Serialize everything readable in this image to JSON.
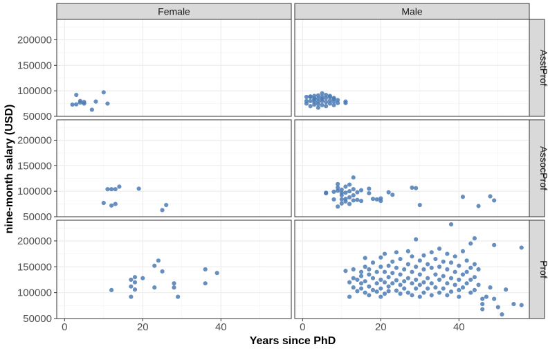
{
  "chart_data": {
    "type": "scatter",
    "facet_cols": [
      "Female",
      "Male"
    ],
    "facet_rows": [
      "AsstProf",
      "AssocProf",
      "Prof"
    ],
    "xlabel": "Years since PhD",
    "ylabel": "nine-month salary (USD)",
    "xlim": [
      -2,
      58
    ],
    "ylim": [
      50000,
      240000
    ],
    "x_ticks": [
      0,
      20,
      40
    ],
    "y_ticks": [
      50000,
      100000,
      150000,
      200000
    ],
    "point_color": "#4b7bb5",
    "grid": true,
    "panels": [
      {
        "row": "AsstProf",
        "col": "Female",
        "points": [
          [
            2,
            73000
          ],
          [
            3,
            73500
          ],
          [
            3,
            92000
          ],
          [
            4,
            80000
          ],
          [
            4,
            77000
          ],
          [
            5,
            75000
          ],
          [
            5,
            78000
          ],
          [
            7,
            63000
          ],
          [
            8,
            79000
          ],
          [
            10,
            97000
          ],
          [
            11,
            75000
          ]
        ]
      },
      {
        "row": "AsstProf",
        "col": "Male",
        "points": [
          [
            1,
            88000
          ],
          [
            1,
            80000
          ],
          [
            1,
            75000
          ],
          [
            2,
            88000
          ],
          [
            2,
            80000
          ],
          [
            2,
            70000
          ],
          [
            2,
            89000
          ],
          [
            3,
            85000
          ],
          [
            3,
            78000
          ],
          [
            3,
            73000
          ],
          [
            3,
            90000
          ],
          [
            3,
            83000
          ],
          [
            4,
            91000
          ],
          [
            4,
            85000
          ],
          [
            4,
            74000
          ],
          [
            4,
            67000
          ],
          [
            4,
            79000
          ],
          [
            5,
            95000
          ],
          [
            5,
            88000
          ],
          [
            5,
            80000
          ],
          [
            5,
            72000
          ],
          [
            5,
            84000
          ],
          [
            6,
            92000
          ],
          [
            6,
            78000
          ],
          [
            6,
            70000
          ],
          [
            6,
            86000
          ],
          [
            7,
            88000
          ],
          [
            7,
            81000
          ],
          [
            7,
            75000
          ],
          [
            7,
            90000
          ],
          [
            8,
            86000
          ],
          [
            8,
            79000
          ],
          [
            8,
            72000
          ],
          [
            8,
            84000
          ],
          [
            9,
            82000
          ],
          [
            9,
            76000
          ],
          [
            11,
            79000
          ],
          [
            11,
            76000
          ]
        ]
      },
      {
        "row": "AssocProf",
        "col": "Female",
        "points": [
          [
            10,
            77000
          ],
          [
            11,
            104000
          ],
          [
            12,
            104000
          ],
          [
            12,
            72000
          ],
          [
            13,
            104000
          ],
          [
            13,
            75000
          ],
          [
            14,
            109000
          ],
          [
            19,
            105000
          ],
          [
            25,
            63000
          ],
          [
            26,
            73000
          ]
        ]
      },
      {
        "row": "AssocProf",
        "col": "Male",
        "points": [
          [
            6,
            96000
          ],
          [
            6,
            97000
          ],
          [
            8,
            99000
          ],
          [
            8,
            84000
          ],
          [
            9,
            101000
          ],
          [
            9,
            107000
          ],
          [
            9,
            114000
          ],
          [
            9,
            70000
          ],
          [
            10,
            103000
          ],
          [
            10,
            97000
          ],
          [
            10,
            92000
          ],
          [
            10,
            84000
          ],
          [
            10,
            76000
          ],
          [
            11,
            109000
          ],
          [
            11,
            97000
          ],
          [
            11,
            85000
          ],
          [
            11,
            80000
          ],
          [
            12,
            113000
          ],
          [
            12,
            100000
          ],
          [
            12,
            88000
          ],
          [
            12,
            75000
          ],
          [
            13,
            127000
          ],
          [
            13,
            104000
          ],
          [
            13,
            92000
          ],
          [
            13,
            82000
          ],
          [
            14,
            98000
          ],
          [
            14,
            83000
          ],
          [
            15,
            102000
          ],
          [
            15,
            81000
          ],
          [
            17,
            105000
          ],
          [
            17,
            96000
          ],
          [
            18,
            85000
          ],
          [
            19,
            84000
          ],
          [
            20,
            86000
          ],
          [
            20,
            81000
          ],
          [
            22,
            98000
          ],
          [
            23,
            93000
          ],
          [
            28,
            107000
          ],
          [
            29,
            106000
          ],
          [
            30,
            73000
          ],
          [
            41,
            89000
          ],
          [
            45,
            71000
          ],
          [
            48,
            90000
          ],
          [
            49,
            82000
          ]
        ]
      },
      {
        "row": "Prof",
        "col": "Female",
        "points": [
          [
            12,
            105000
          ],
          [
            17,
            125000
          ],
          [
            17,
            112000
          ],
          [
            17,
            92000
          ],
          [
            18,
            130000
          ],
          [
            18,
            120000
          ],
          [
            18,
            106000
          ],
          [
            20,
            128000
          ],
          [
            23,
            152000
          ],
          [
            23,
            110000
          ],
          [
            24,
            162000
          ],
          [
            25,
            141000
          ],
          [
            28,
            118000
          ],
          [
            28,
            110000
          ],
          [
            29,
            92000
          ],
          [
            36,
            145000
          ],
          [
            36,
            118000
          ],
          [
            39,
            138000
          ]
        ]
      },
      {
        "row": "Prof",
        "col": "Male",
        "points": [
          [
            11,
            142000
          ],
          [
            12,
            120000
          ],
          [
            12,
            92000
          ],
          [
            13,
            128000
          ],
          [
            13,
            110000
          ],
          [
            13,
            145000
          ],
          [
            14,
            103000
          ],
          [
            14,
            125000
          ],
          [
            15,
            108000
          ],
          [
            15,
            140000
          ],
          [
            15,
            132000
          ],
          [
            15,
            118000
          ],
          [
            16,
            150000
          ],
          [
            16,
            122000
          ],
          [
            16,
            100000
          ],
          [
            16,
            167000
          ],
          [
            17,
            135000
          ],
          [
            17,
            112000
          ],
          [
            17,
            95000
          ],
          [
            17,
            145000
          ],
          [
            18,
            128000
          ],
          [
            18,
            105000
          ],
          [
            18,
            158000
          ],
          [
            19,
            140000
          ],
          [
            19,
            118000
          ],
          [
            19,
            102000
          ],
          [
            20,
            150000
          ],
          [
            20,
            125000
          ],
          [
            20,
            108000
          ],
          [
            20,
            92000
          ],
          [
            20,
            168000
          ],
          [
            21,
            140000
          ],
          [
            21,
            120000
          ],
          [
            21,
            98000
          ],
          [
            21,
            175000
          ],
          [
            22,
            152000
          ],
          [
            22,
            130000
          ],
          [
            22,
            112000
          ],
          [
            22,
            103000
          ],
          [
            23,
            160000
          ],
          [
            23,
            138000
          ],
          [
            23,
            118000
          ],
          [
            24,
            148000
          ],
          [
            24,
            124000
          ],
          [
            24,
            104000
          ],
          [
            24,
            178000
          ],
          [
            25,
            135000
          ],
          [
            25,
            115000
          ],
          [
            25,
            98000
          ],
          [
            25,
            165000
          ],
          [
            26,
            145000
          ],
          [
            26,
            122000
          ],
          [
            26,
            108000
          ],
          [
            27,
            180000
          ],
          [
            27,
            155000
          ],
          [
            27,
            128000
          ],
          [
            27,
            100000
          ],
          [
            28,
            170000
          ],
          [
            28,
            140000
          ],
          [
            28,
            118000
          ],
          [
            28,
            95000
          ],
          [
            29,
            150000
          ],
          [
            29,
            125000
          ],
          [
            29,
            108000
          ],
          [
            29,
            203000
          ],
          [
            30,
            162000
          ],
          [
            30,
            135000
          ],
          [
            30,
            115000
          ],
          [
            30,
            92000
          ],
          [
            31,
            172000
          ],
          [
            31,
            145000
          ],
          [
            31,
            120000
          ],
          [
            31,
            100000
          ],
          [
            32,
            155000
          ],
          [
            32,
            128000
          ],
          [
            32,
            108000
          ],
          [
            33,
            178000
          ],
          [
            33,
            148000
          ],
          [
            33,
            118000
          ],
          [
            33,
            95000
          ],
          [
            34,
            165000
          ],
          [
            34,
            135000
          ],
          [
            34,
            110000
          ],
          [
            35,
            185000
          ],
          [
            35,
            150000
          ],
          [
            35,
            125000
          ],
          [
            35,
            100000
          ],
          [
            36,
            160000
          ],
          [
            36,
            132000
          ],
          [
            36,
            108000
          ],
          [
            37,
            175000
          ],
          [
            37,
            145000
          ],
          [
            37,
            118000
          ],
          [
            37,
            95000
          ],
          [
            38,
            232000
          ],
          [
            38,
            158000
          ],
          [
            38,
            128000
          ],
          [
            38,
            102000
          ],
          [
            39,
            170000
          ],
          [
            39,
            140000
          ],
          [
            39,
            115000
          ],
          [
            40,
            152000
          ],
          [
            40,
            125000
          ],
          [
            40,
            105000
          ],
          [
            40,
            92000
          ],
          [
            41,
            180000
          ],
          [
            41,
            135000
          ],
          [
            41,
            110000
          ],
          [
            42,
            162000
          ],
          [
            42,
            140000
          ],
          [
            42,
            118000
          ],
          [
            43,
            195000
          ],
          [
            43,
            148000
          ],
          [
            43,
            125000
          ],
          [
            43,
            100000
          ],
          [
            44,
            205000
          ],
          [
            44,
            155000
          ],
          [
            44,
            130000
          ],
          [
            44,
            105000
          ],
          [
            45,
            145000
          ],
          [
            45,
            115000
          ],
          [
            46,
            88000
          ],
          [
            46,
            78000
          ],
          [
            46,
            68000
          ],
          [
            47,
            92000
          ],
          [
            48,
            110000
          ],
          [
            49,
            192000
          ],
          [
            49,
            88000
          ],
          [
            50,
            72000
          ],
          [
            51,
            58000
          ],
          [
            52,
            106000
          ],
          [
            54,
            78000
          ],
          [
            56,
            187000
          ],
          [
            56,
            76000
          ]
        ]
      }
    ]
  }
}
